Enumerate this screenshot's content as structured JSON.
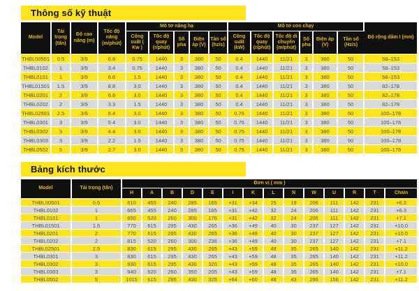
{
  "colors": {
    "yellow": "#ffe41c",
    "row_yellow": "#ffe41c",
    "row_gray": "#d9d9d9",
    "header_bg": "#101010",
    "header_text": "#e6b80e",
    "body_text": "#55524a",
    "page_bg": "#ffffff"
  },
  "spec_table": {
    "title": "Thông số kỹ thuật",
    "static_columns": [
      "Model",
      "Tải trọng (tấn)",
      "Độ cao nâng (m)",
      "Tốc độ nâng (m/phút)"
    ],
    "lift_motor": {
      "label": "Mô tơ nâng hạ",
      "columns": [
        "Công suất ( Kw )",
        "Tốc độ quay (r/phút)",
        "Số pha",
        "Điện áp (V)",
        "Tần số (hz/s)"
      ]
    },
    "travel_motor": {
      "label": "Mô tơ con chạy",
      "columns": [
        "Công suất (kW)",
        "Tốc độ quay (r/phút)",
        "Tốc độ di chuyển (m/phút)",
        "Số pha",
        "Điện áp (V)",
        "Tần số (Hz/s)"
      ]
    },
    "last_column": "Độ rộng dầm I (mm)",
    "rows": [
      [
        "THBL00501",
        "0.5",
        "3/9",
        "6.8",
        "0.75",
        "1440",
        "3",
        "380",
        "50",
        "0.4",
        "1440",
        "11/21",
        "3",
        "380",
        "50",
        "58–153"
      ],
      [
        "THBL0102",
        "1",
        "3/9",
        "3.4",
        "0.75",
        "1440",
        "3",
        "380",
        "50",
        "0.4",
        "1440",
        "11/21",
        "3",
        "380",
        "50",
        "58–153"
      ],
      [
        "THBL0101",
        "1",
        "3/9",
        "6.6",
        "1.5",
        "1440",
        "3",
        "380",
        "50",
        "0.4",
        "1440",
        "11/21",
        "3",
        "380",
        "50",
        "58–153"
      ],
      [
        "THBL01501",
        "1.5",
        "3/9",
        "8.8",
        "3.0",
        "1440",
        "3",
        "380",
        "50",
        "0.4",
        "1440",
        "11/21",
        "3",
        "380",
        "50",
        "82–178"
      ],
      [
        "THBL0201",
        "2",
        "3/9",
        "6.6",
        "3.0",
        "1440",
        "3",
        "380",
        "50",
        "0.4",
        "1440",
        "11/21",
        "3",
        "380",
        "50",
        "82–178"
      ],
      [
        "THBL0202",
        "2",
        "3/9",
        "3.3",
        "1.5",
        "1440",
        "3",
        "380",
        "50",
        "0.4",
        "1440",
        "11/21",
        "3",
        "380",
        "50",
        "82–178"
      ],
      [
        "THBL02501",
        "2.5",
        "3/9",
        "6.4",
        "3.0",
        "1440",
        "3",
        "380",
        "50",
        "0.75",
        "1440",
        "11/21",
        "3",
        "380",
        "50",
        "100–178"
      ],
      [
        "THBL0301",
        "3",
        "3/9",
        "5.4",
        "3.0",
        "1440",
        "3",
        "380",
        "50",
        "0.75",
        "1440",
        "11/21",
        "3",
        "380",
        "50",
        "100–178"
      ],
      [
        "THBL0302",
        "3",
        "3/9",
        "4.4",
        "3.0",
        "1440",
        "3",
        "380",
        "50",
        "0.75",
        "1440",
        "11/21",
        "3",
        "380",
        "50",
        "100–178"
      ],
      [
        "THBL0303",
        "3",
        "3/9",
        "2.2",
        "1.5",
        "1440",
        "3",
        "380",
        "50",
        "0.75",
        "1440",
        "11/21",
        "3",
        "380",
        "50",
        "100–178"
      ],
      [
        "THBL0502",
        "5",
        "3/9",
        "2.7",
        "3.0",
        "1440",
        "3",
        "380",
        "50",
        "0.75",
        "1440",
        "11/21",
        "3",
        "380",
        "50",
        "100–178"
      ]
    ]
  },
  "dimension_table": {
    "title": "Bảng kích thước",
    "model_label": "Model",
    "load_label": "Tải trọng (tấn)",
    "unit_header": "Đơn vị ( mm )",
    "dim_columns": [
      "H",
      "A",
      "B",
      "D",
      "E",
      "I",
      "K",
      "L",
      "N",
      "W",
      "U",
      "R",
      "T",
      "Chain"
    ],
    "rows": [
      [
        "THBL00501",
        "0.5",
        "610",
        "455",
        "240",
        "285",
        "165",
        "+31",
        "+34",
        "25",
        "19",
        "206",
        "111",
        "142",
        "231",
        "+6.3"
      ],
      [
        "THBL0102",
        "1",
        "665",
        "455",
        "240",
        "285",
        "165",
        "+31",
        "+42",
        "32",
        "24",
        "206",
        "111",
        "142",
        "231",
        "+6.3"
      ],
      [
        "THBL0101",
        "1",
        "650",
        "520",
        "260",
        "300",
        "176",
        "+31",
        "+42",
        "32",
        "24",
        "206",
        "111",
        "142",
        "231",
        "+7.1"
      ],
      [
        "THBL01501",
        "1.5",
        "770",
        "615",
        "295",
        "430",
        "265",
        "+36",
        "+49",
        "40",
        "30",
        "237",
        "127",
        "142",
        "231",
        "+10.0"
      ],
      [
        "THBL0201",
        "2",
        "770",
        "615",
        "295",
        "430",
        "265",
        "+36",
        "+49",
        "40",
        "30",
        "237",
        "127",
        "142",
        "231",
        "+10.0"
      ],
      [
        "THBL0202",
        "2",
        "815",
        "520",
        "260",
        "300",
        "236",
        "+36",
        "+49",
        "40",
        "30",
        "237",
        "127",
        "142",
        "231",
        "+7.1"
      ],
      [
        "THBL02501",
        "2.5",
        "830",
        "615",
        "295",
        "430",
        "265",
        "+43",
        "+59",
        "48",
        "35",
        "265",
        "140",
        "142",
        "231",
        "+11.2"
      ],
      [
        "THBL0301",
        "3",
        "830",
        "615",
        "295",
        "430",
        "265",
        "+43",
        "+59",
        "48",
        "35",
        "265",
        "140",
        "142",
        "231",
        "+11.2"
      ],
      [
        "THBL0302",
        "3",
        "930",
        "615",
        "295",
        "430",
        "320",
        "+43",
        "+59",
        "48",
        "35",
        "265",
        "140",
        "142",
        "231",
        "+10.0"
      ],
      [
        "THBL0303",
        "3",
        "940",
        "520",
        "260",
        "350",
        "205",
        "+43",
        "+59",
        "48",
        "35",
        "265",
        "140",
        "142",
        "231",
        "+7.1"
      ],
      [
        "THBL0502",
        "5",
        "1015",
        "615",
        "295",
        "430",
        "325",
        "+64",
        "+60",
        "48",
        "43",
        "296",
        "156",
        "142",
        "231",
        "+11.2"
      ]
    ]
  }
}
